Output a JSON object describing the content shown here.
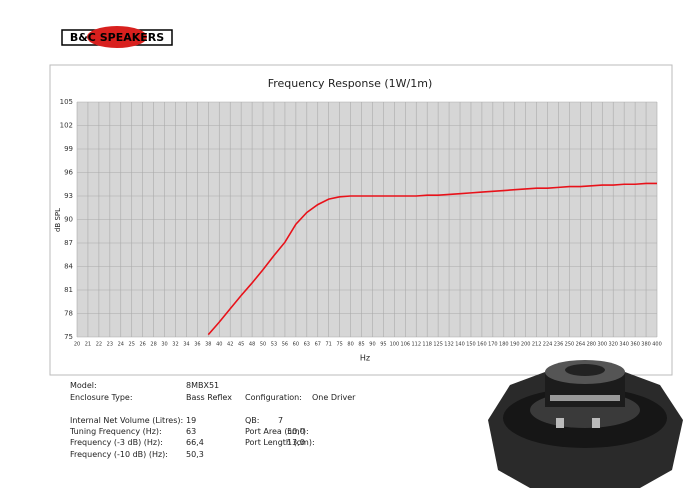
{
  "header": {
    "logo": "B&C SPEAKERS"
  },
  "chart_data": {
    "type": "line",
    "title": "Frequency Response (1W/1m)",
    "x_label": "Hz",
    "y_label": "dB SPL",
    "categories": [
      "20",
      "21",
      "22",
      "23",
      "24",
      "25",
      "26",
      "28",
      "30",
      "32",
      "34",
      "36",
      "38",
      "40",
      "42",
      "45",
      "48",
      "50",
      "53",
      "56",
      "60",
      "63",
      "67",
      "71",
      "75",
      "80",
      "85",
      "90",
      "95",
      "100",
      "106",
      "112",
      "118",
      "125",
      "132",
      "140",
      "150",
      "160",
      "170",
      "180",
      "190",
      "200",
      "212",
      "224",
      "236",
      "250",
      "264",
      "280",
      "300",
      "320",
      "340",
      "360",
      "380",
      "400"
    ],
    "series": [
      {
        "name": "SPL",
        "color": "#e8121a",
        "values": [
          null,
          null,
          null,
          null,
          null,
          null,
          null,
          null,
          null,
          null,
          null,
          null,
          75.3,
          76.9,
          78.6,
          80.3,
          81.9,
          83.6,
          85.4,
          87.1,
          89.4,
          90.9,
          91.9,
          92.6,
          92.9,
          93.0,
          93.0,
          93.0,
          93.0,
          93.0,
          93.0,
          93.0,
          93.1,
          93.1,
          93.2,
          93.3,
          93.4,
          93.5,
          93.6,
          93.7,
          93.8,
          93.9,
          94.0,
          94.0,
          94.1,
          94.2,
          94.2,
          94.3,
          94.4,
          94.4,
          94.5,
          94.5,
          94.6,
          94.6
        ]
      }
    ],
    "ylim": [
      75,
      105
    ],
    "yticks": [
      75,
      78,
      81,
      84,
      87,
      90,
      93,
      96,
      99,
      102,
      105
    ],
    "grid": true
  },
  "specs": [
    {
      "label": "Model:",
      "value": "8MBX51"
    },
    {
      "label": "Enclosure Type:",
      "value": "Bass Reflex"
    },
    {
      "label": "Configuration:",
      "value": "One Driver"
    },
    {
      "label": "Internal Net Volume (Litres):",
      "value": "19"
    },
    {
      "label": "Tuning Frequency (Hz):",
      "value": "63"
    },
    {
      "label": "Frequency (-3 dB) (Hz):",
      "value": "66,4"
    },
    {
      "label": "Frequency (-10 dB) (Hz):",
      "value": "50,3"
    },
    {
      "label": "QB:",
      "value": "7"
    },
    {
      "label": "Port Area (cm²):",
      "value": "50,0"
    },
    {
      "label": "Port Length (cm):",
      "value": "13,0"
    }
  ]
}
